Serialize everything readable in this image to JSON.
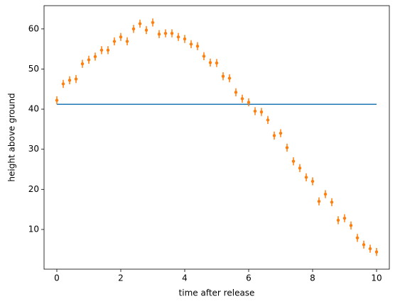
{
  "chart_data": {
    "type": "errorbar",
    "xlabel": "time after release",
    "ylabel": "height above ground",
    "xlim": [
      -0.4,
      10.4
    ],
    "ylim": [
      0.1,
      65.8
    ],
    "xticks": [
      0,
      2,
      4,
      6,
      8,
      10
    ],
    "yticks": [
      10,
      20,
      30,
      40,
      50,
      60
    ],
    "series": [
      {
        "type": "line",
        "color": "#1f77b4",
        "x": [
          0,
          10
        ],
        "values": [
          41.2,
          41.2
        ]
      },
      {
        "type": "errorbar",
        "color": "#ff7f0e",
        "x": [
          0,
          0.2,
          0.4,
          0.6,
          0.8,
          1.0,
          1.2,
          1.4,
          1.6,
          1.8,
          2.0,
          2.2,
          2.4,
          2.6,
          2.8,
          3.0,
          3.2,
          3.4,
          3.6,
          3.8,
          4.0,
          4.2,
          4.4,
          4.6,
          4.8,
          5.0,
          5.2,
          5.4,
          5.6,
          5.8,
          6.0,
          6.2,
          6.4,
          6.6,
          6.8,
          7.0,
          7.2,
          7.4,
          7.6,
          7.8,
          8.0,
          8.2,
          8.4,
          8.6,
          8.8,
          9.0,
          9.2,
          9.4,
          9.6,
          9.8,
          10.0
        ],
        "values": [
          42.2,
          46.3,
          47.2,
          47.5,
          51.3,
          52.3,
          53.1,
          54.7,
          54.7,
          56.9,
          58.0,
          56.9,
          60.0,
          61.3,
          59.7,
          61.6,
          58.7,
          58.9,
          58.9,
          58.0,
          57.5,
          56.2,
          55.7,
          53.2,
          51.6,
          51.5,
          48.2,
          47.7,
          44.2,
          42.6,
          41.7,
          39.5,
          39.3,
          37.3,
          33.4,
          34.0,
          30.4,
          27.0,
          25.3,
          23.0,
          22.0,
          17.0,
          18.8,
          16.8,
          12.3,
          12.8,
          11.0,
          7.9,
          6.2,
          5.2,
          4.4
        ],
        "yerr": [
          1,
          1,
          1,
          1,
          1,
          1,
          1,
          1,
          1,
          1,
          1,
          1,
          1,
          1,
          1,
          1,
          1,
          1,
          1,
          1,
          1,
          1,
          1,
          1,
          1,
          1,
          1,
          1,
          1,
          1,
          1,
          1,
          1,
          1,
          1,
          1,
          1,
          1,
          1,
          1,
          1,
          1,
          1,
          1,
          1,
          1,
          1,
          1,
          1,
          1,
          1
        ]
      }
    ]
  }
}
